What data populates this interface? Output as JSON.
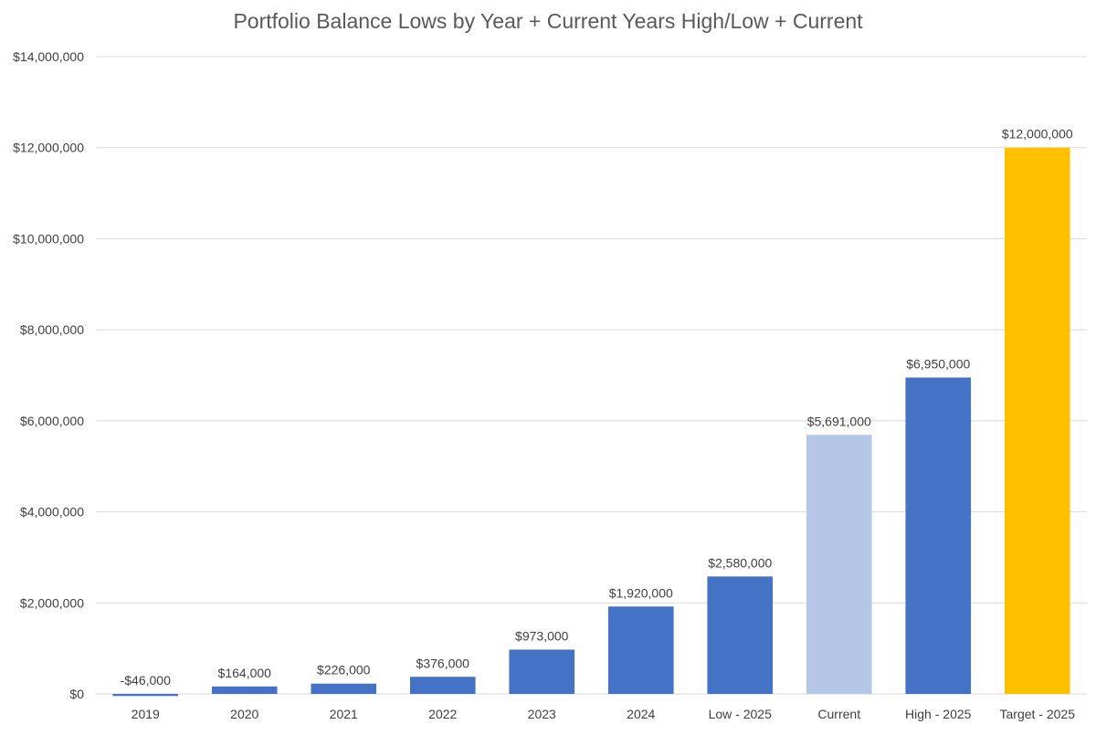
{
  "chart_data": {
    "type": "bar",
    "title": "Portfolio Balance Lows by Year + Current Years High/Low + Current",
    "xlabel": "",
    "ylabel": "",
    "ylim": [
      0,
      14000000
    ],
    "yticks": [
      0,
      2000000,
      4000000,
      6000000,
      8000000,
      10000000,
      12000000,
      14000000
    ],
    "ytick_labels": [
      "$0",
      "$2,000,000",
      "$4,000,000",
      "$6,000,000",
      "$8,000,000",
      "$10,000,000",
      "$12,000,000",
      "$14,000,000"
    ],
    "grid": true,
    "legend": "none",
    "categories": [
      "2019",
      "2020",
      "2021",
      "2022",
      "2023",
      "2024",
      "Low - 2025",
      "Current",
      "High - 2025",
      "Target - 2025"
    ],
    "values": [
      -46000,
      164000,
      226000,
      376000,
      973000,
      1920000,
      2580000,
      5691000,
      6950000,
      12000000
    ],
    "data_labels": [
      "-$46,000",
      "$164,000",
      "$226,000",
      "$376,000",
      "$973,000",
      "$1,920,000",
      "$2,580,000",
      "$5,691,000",
      "$6,950,000",
      "$12,000,000"
    ],
    "bar_colors": [
      "#4472c4",
      "#4472c4",
      "#4472c4",
      "#4472c4",
      "#4472c4",
      "#4472c4",
      "#4472c4",
      "#b4c7e7",
      "#4472c4",
      "#ffc000"
    ],
    "label_colors": [
      "#e00000",
      "#404040",
      "#404040",
      "#404040",
      "#404040",
      "#404040",
      "#404040",
      "#404040",
      "#404040",
      "#404040"
    ],
    "gridline_color": "#d9d9d9"
  }
}
